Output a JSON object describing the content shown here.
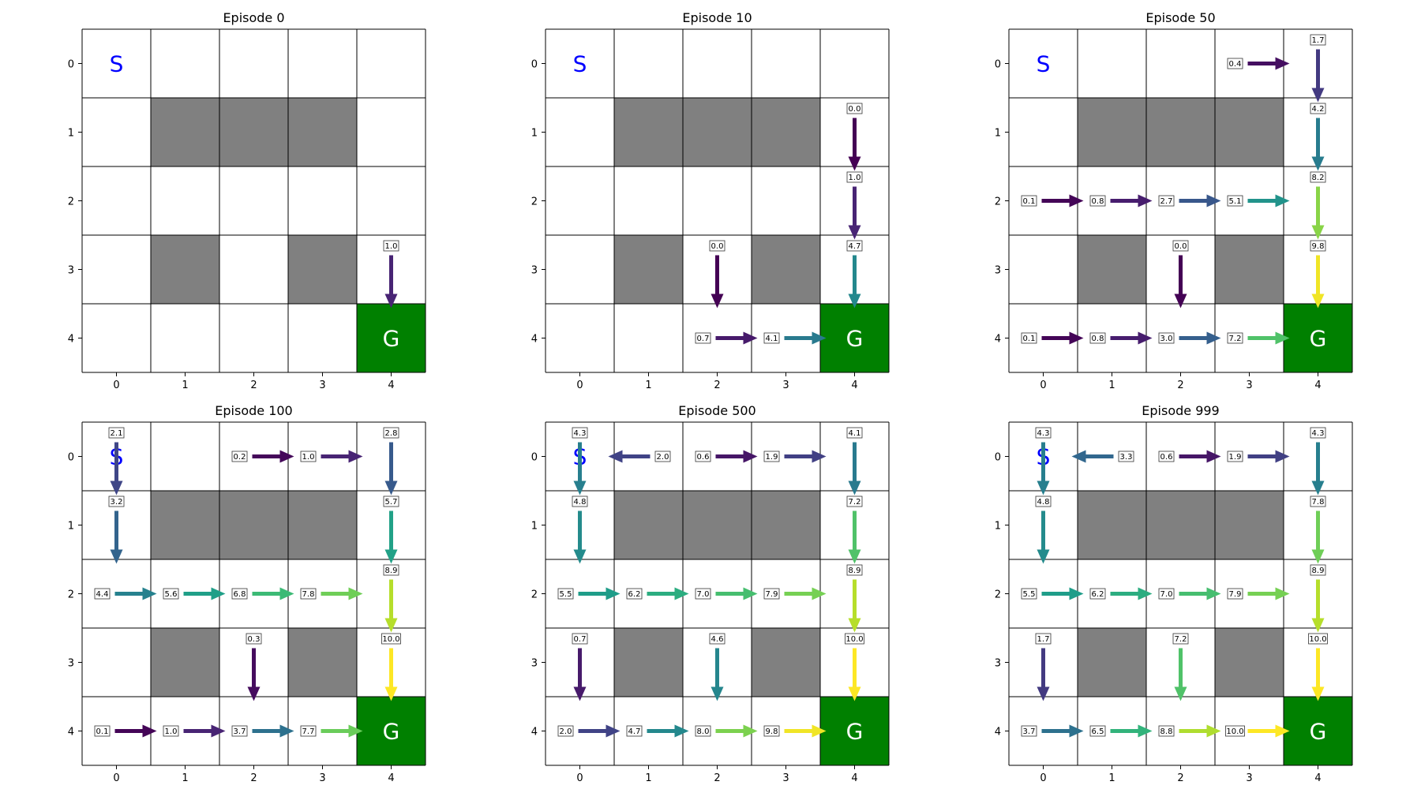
{
  "chart_data": [
    {
      "type": "heatmap",
      "title": "Episode 0",
      "x_ticks": [
        "0",
        "1",
        "2",
        "3",
        "4"
      ],
      "y_ticks": [
        "0",
        "1",
        "2",
        "3",
        "4"
      ],
      "grid": true,
      "start": {
        "row": 0,
        "col": 0,
        "label": "S"
      },
      "goal": {
        "row": 4,
        "col": 4,
        "label": "G"
      },
      "walls": [
        [
          1,
          1
        ],
        [
          1,
          2
        ],
        [
          1,
          3
        ],
        [
          3,
          1
        ],
        [
          3,
          3
        ]
      ],
      "policy": [
        {
          "row": 3,
          "col": 4,
          "dir": "down",
          "value": 1.0,
          "label": "1.0"
        }
      ]
    },
    {
      "type": "heatmap",
      "title": "Episode 10",
      "x_ticks": [
        "0",
        "1",
        "2",
        "3",
        "4"
      ],
      "y_ticks": [
        "0",
        "1",
        "2",
        "3",
        "4"
      ],
      "grid": true,
      "start": {
        "row": 0,
        "col": 0,
        "label": "S"
      },
      "goal": {
        "row": 4,
        "col": 4,
        "label": "G"
      },
      "walls": [
        [
          1,
          1
        ],
        [
          1,
          2
        ],
        [
          1,
          3
        ],
        [
          3,
          1
        ],
        [
          3,
          3
        ]
      ],
      "policy": [
        {
          "row": 1,
          "col": 4,
          "dir": "down",
          "value": 0.0,
          "label": "0.0"
        },
        {
          "row": 2,
          "col": 4,
          "dir": "down",
          "value": 1.0,
          "label": "1.0"
        },
        {
          "row": 3,
          "col": 2,
          "dir": "down",
          "value": 0.0,
          "label": "0.0"
        },
        {
          "row": 3,
          "col": 4,
          "dir": "down",
          "value": 4.7,
          "label": "4.7"
        },
        {
          "row": 4,
          "col": 2,
          "dir": "right",
          "value": 0.7,
          "label": "0.7"
        },
        {
          "row": 4,
          "col": 3,
          "dir": "right",
          "value": 4.1,
          "label": "4.1"
        }
      ]
    },
    {
      "type": "heatmap",
      "title": "Episode 50",
      "x_ticks": [
        "0",
        "1",
        "2",
        "3",
        "4"
      ],
      "y_ticks": [
        "0",
        "1",
        "2",
        "3",
        "4"
      ],
      "grid": true,
      "start": {
        "row": 0,
        "col": 0,
        "label": "S"
      },
      "goal": {
        "row": 4,
        "col": 4,
        "label": "G"
      },
      "walls": [
        [
          1,
          1
        ],
        [
          1,
          2
        ],
        [
          1,
          3
        ],
        [
          3,
          1
        ],
        [
          3,
          3
        ]
      ],
      "policy": [
        {
          "row": 0,
          "col": 3,
          "dir": "right",
          "value": 0.4,
          "label": "0.4"
        },
        {
          "row": 0,
          "col": 4,
          "dir": "down",
          "value": 1.7,
          "label": "1.7"
        },
        {
          "row": 1,
          "col": 4,
          "dir": "down",
          "value": 4.2,
          "label": "4.2"
        },
        {
          "row": 2,
          "col": 0,
          "dir": "right",
          "value": 0.1,
          "label": "0.1"
        },
        {
          "row": 2,
          "col": 1,
          "dir": "right",
          "value": 0.8,
          "label": "0.8"
        },
        {
          "row": 2,
          "col": 2,
          "dir": "right",
          "value": 2.7,
          "label": "2.7"
        },
        {
          "row": 2,
          "col": 3,
          "dir": "right",
          "value": 5.1,
          "label": "5.1"
        },
        {
          "row": 2,
          "col": 4,
          "dir": "down",
          "value": 8.2,
          "label": "8.2"
        },
        {
          "row": 3,
          "col": 2,
          "dir": "down",
          "value": 0.0,
          "label": "0.0"
        },
        {
          "row": 3,
          "col": 4,
          "dir": "down",
          "value": 9.8,
          "label": "9.8"
        },
        {
          "row": 4,
          "col": 0,
          "dir": "right",
          "value": 0.1,
          "label": "0.1"
        },
        {
          "row": 4,
          "col": 1,
          "dir": "right",
          "value": 0.8,
          "label": "0.8"
        },
        {
          "row": 4,
          "col": 2,
          "dir": "right",
          "value": 3.0,
          "label": "3.0"
        },
        {
          "row": 4,
          "col": 3,
          "dir": "right",
          "value": 7.2,
          "label": "7.2"
        }
      ]
    },
    {
      "type": "heatmap",
      "title": "Episode 100",
      "x_ticks": [
        "0",
        "1",
        "2",
        "3",
        "4"
      ],
      "y_ticks": [
        "0",
        "1",
        "2",
        "3",
        "4"
      ],
      "grid": true,
      "start": {
        "row": 0,
        "col": 0,
        "label": "S"
      },
      "goal": {
        "row": 4,
        "col": 4,
        "label": "G"
      },
      "walls": [
        [
          1,
          1
        ],
        [
          1,
          2
        ],
        [
          1,
          3
        ],
        [
          3,
          1
        ],
        [
          3,
          3
        ]
      ],
      "policy": [
        {
          "row": 0,
          "col": 0,
          "dir": "down",
          "value": 2.1,
          "label": "2.1"
        },
        {
          "row": 0,
          "col": 2,
          "dir": "right",
          "value": 0.2,
          "label": "0.2"
        },
        {
          "row": 0,
          "col": 3,
          "dir": "right",
          "value": 1.0,
          "label": "1.0"
        },
        {
          "row": 0,
          "col": 4,
          "dir": "down",
          "value": 2.8,
          "label": "2.8"
        },
        {
          "row": 1,
          "col": 0,
          "dir": "down",
          "value": 3.2,
          "label": "3.2"
        },
        {
          "row": 1,
          "col": 4,
          "dir": "down",
          "value": 5.7,
          "label": "5.7"
        },
        {
          "row": 2,
          "col": 0,
          "dir": "right",
          "value": 4.4,
          "label": "4.4"
        },
        {
          "row": 2,
          "col": 1,
          "dir": "right",
          "value": 5.6,
          "label": "5.6"
        },
        {
          "row": 2,
          "col": 2,
          "dir": "right",
          "value": 6.8,
          "label": "6.8"
        },
        {
          "row": 2,
          "col": 3,
          "dir": "right",
          "value": 7.8,
          "label": "7.8"
        },
        {
          "row": 2,
          "col": 4,
          "dir": "down",
          "value": 8.9,
          "label": "8.9"
        },
        {
          "row": 3,
          "col": 2,
          "dir": "down",
          "value": 0.3,
          "label": "0.3"
        },
        {
          "row": 3,
          "col": 4,
          "dir": "down",
          "value": 10.0,
          "label": "10.0"
        },
        {
          "row": 4,
          "col": 0,
          "dir": "right",
          "value": 0.1,
          "label": "0.1"
        },
        {
          "row": 4,
          "col": 1,
          "dir": "right",
          "value": 1.0,
          "label": "1.0"
        },
        {
          "row": 4,
          "col": 2,
          "dir": "right",
          "value": 3.7,
          "label": "3.7"
        },
        {
          "row": 4,
          "col": 3,
          "dir": "right",
          "value": 7.7,
          "label": "7.7"
        }
      ]
    },
    {
      "type": "heatmap",
      "title": "Episode 500",
      "x_ticks": [
        "0",
        "1",
        "2",
        "3",
        "4"
      ],
      "y_ticks": [
        "0",
        "1",
        "2",
        "3",
        "4"
      ],
      "grid": true,
      "start": {
        "row": 0,
        "col": 0,
        "label": "S"
      },
      "goal": {
        "row": 4,
        "col": 4,
        "label": "G"
      },
      "walls": [
        [
          1,
          1
        ],
        [
          1,
          2
        ],
        [
          1,
          3
        ],
        [
          3,
          1
        ],
        [
          3,
          3
        ]
      ],
      "policy": [
        {
          "row": 0,
          "col": 0,
          "dir": "down",
          "value": 4.3,
          "label": "4.3"
        },
        {
          "row": 0,
          "col": 1,
          "dir": "left",
          "value": 2.0,
          "label": "2.0"
        },
        {
          "row": 0,
          "col": 2,
          "dir": "right",
          "value": 0.6,
          "label": "0.6"
        },
        {
          "row": 0,
          "col": 3,
          "dir": "right",
          "value": 1.9,
          "label": "1.9"
        },
        {
          "row": 0,
          "col": 4,
          "dir": "down",
          "value": 4.1,
          "label": "4.1"
        },
        {
          "row": 1,
          "col": 0,
          "dir": "down",
          "value": 4.8,
          "label": "4.8"
        },
        {
          "row": 1,
          "col": 4,
          "dir": "down",
          "value": 7.2,
          "label": "7.2"
        },
        {
          "row": 2,
          "col": 0,
          "dir": "right",
          "value": 5.5,
          "label": "5.5"
        },
        {
          "row": 2,
          "col": 1,
          "dir": "right",
          "value": 6.2,
          "label": "6.2"
        },
        {
          "row": 2,
          "col": 2,
          "dir": "right",
          "value": 7.0,
          "label": "7.0"
        },
        {
          "row": 2,
          "col": 3,
          "dir": "right",
          "value": 7.9,
          "label": "7.9"
        },
        {
          "row": 2,
          "col": 4,
          "dir": "down",
          "value": 8.9,
          "label": "8.9"
        },
        {
          "row": 3,
          "col": 0,
          "dir": "down",
          "value": 0.7,
          "label": "0.7"
        },
        {
          "row": 3,
          "col": 2,
          "dir": "down",
          "value": 4.6,
          "label": "4.6"
        },
        {
          "row": 3,
          "col": 4,
          "dir": "down",
          "value": 10.0,
          "label": "10.0"
        },
        {
          "row": 4,
          "col": 0,
          "dir": "right",
          "value": 2.0,
          "label": "2.0"
        },
        {
          "row": 4,
          "col": 1,
          "dir": "right",
          "value": 4.7,
          "label": "4.7"
        },
        {
          "row": 4,
          "col": 2,
          "dir": "right",
          "value": 8.0,
          "label": "8.0"
        },
        {
          "row": 4,
          "col": 3,
          "dir": "right",
          "value": 9.8,
          "label": "9.8"
        }
      ]
    },
    {
      "type": "heatmap",
      "title": "Episode 999",
      "x_ticks": [
        "0",
        "1",
        "2",
        "3",
        "4"
      ],
      "y_ticks": [
        "0",
        "1",
        "2",
        "3",
        "4"
      ],
      "grid": true,
      "start": {
        "row": 0,
        "col": 0,
        "label": "S"
      },
      "goal": {
        "row": 4,
        "col": 4,
        "label": "G"
      },
      "walls": [
        [
          1,
          1
        ],
        [
          1,
          2
        ],
        [
          1,
          3
        ],
        [
          3,
          1
        ],
        [
          3,
          3
        ]
      ],
      "policy": [
        {
          "row": 0,
          "col": 0,
          "dir": "down",
          "value": 4.3,
          "label": "4.3"
        },
        {
          "row": 0,
          "col": 1,
          "dir": "left",
          "value": 3.3,
          "label": "3.3"
        },
        {
          "row": 0,
          "col": 2,
          "dir": "right",
          "value": 0.6,
          "label": "0.6"
        },
        {
          "row": 0,
          "col": 3,
          "dir": "right",
          "value": 1.9,
          "label": "1.9"
        },
        {
          "row": 0,
          "col": 4,
          "dir": "down",
          "value": 4.3,
          "label": "4.3"
        },
        {
          "row": 1,
          "col": 0,
          "dir": "down",
          "value": 4.8,
          "label": "4.8"
        },
        {
          "row": 1,
          "col": 4,
          "dir": "down",
          "value": 7.8,
          "label": "7.8"
        },
        {
          "row": 2,
          "col": 0,
          "dir": "right",
          "value": 5.5,
          "label": "5.5"
        },
        {
          "row": 2,
          "col": 1,
          "dir": "right",
          "value": 6.2,
          "label": "6.2"
        },
        {
          "row": 2,
          "col": 2,
          "dir": "right",
          "value": 7.0,
          "label": "7.0"
        },
        {
          "row": 2,
          "col": 3,
          "dir": "right",
          "value": 7.9,
          "label": "7.9"
        },
        {
          "row": 2,
          "col": 4,
          "dir": "down",
          "value": 8.9,
          "label": "8.9"
        },
        {
          "row": 3,
          "col": 0,
          "dir": "down",
          "value": 1.7,
          "label": "1.7"
        },
        {
          "row": 3,
          "col": 2,
          "dir": "down",
          "value": 7.2,
          "label": "7.2"
        },
        {
          "row": 3,
          "col": 4,
          "dir": "down",
          "value": 10.0,
          "label": "10.0"
        },
        {
          "row": 4,
          "col": 0,
          "dir": "right",
          "value": 3.7,
          "label": "3.7"
        },
        {
          "row": 4,
          "col": 1,
          "dir": "right",
          "value": 6.5,
          "label": "6.5"
        },
        {
          "row": 4,
          "col": 2,
          "dir": "right",
          "value": 8.8,
          "label": "8.8"
        },
        {
          "row": 4,
          "col": 3,
          "dir": "right",
          "value": 10.0,
          "label": "10.0"
        }
      ]
    }
  ],
  "colors": {
    "wall": "#808080",
    "goal": "#008000",
    "start_text": "#0000ff",
    "goal_text": "#ffffff",
    "grid": "#000000",
    "colormap": "viridis",
    "value_range": [
      0,
      10
    ]
  }
}
